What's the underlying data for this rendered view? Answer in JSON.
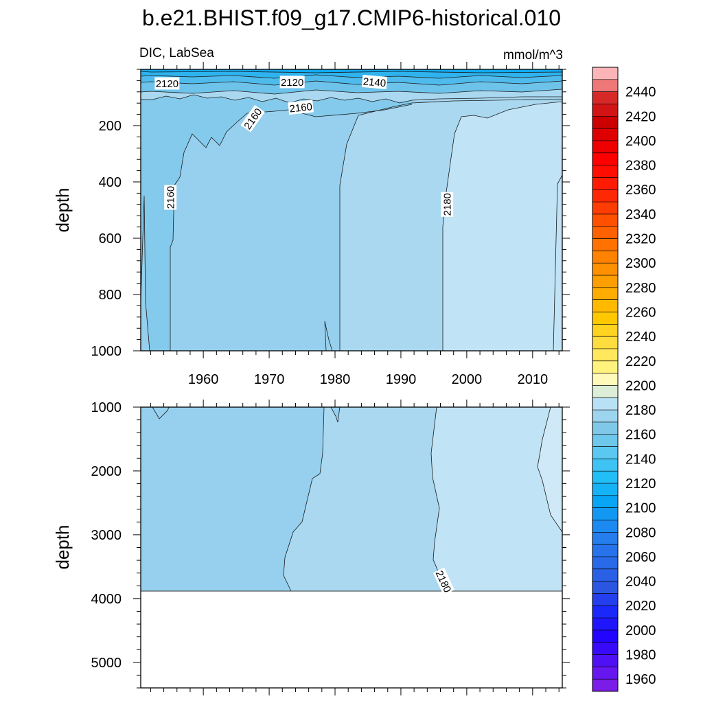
{
  "chart_data": {
    "type": "heatmap",
    "title": "b.e21.BHIST.f09_g17.CMIP6-historical.010",
    "left_subtitle": "DIC, LabSea",
    "right_subtitle": "mmol/m^3",
    "panels": [
      {
        "name": "upper",
        "ylabel": "depth",
        "ylim": [
          1000,
          0
        ],
        "y_ticks": [
          200,
          400,
          600,
          800,
          1000
        ],
        "xlim": [
          1950.5,
          2014.5
        ],
        "x_ticks": [
          1960,
          1970,
          1980,
          1990,
          2000,
          2010
        ],
        "x_tick_labels": [
          "1960",
          "1970",
          "1980",
          "1990",
          "2000",
          "2010"
        ],
        "contour_labels": [
          {
            "text": "2120",
            "year": 1954.5,
            "depth": 50,
            "angle": 0
          },
          {
            "text": "2120",
            "year": 1973.5,
            "depth": 45,
            "angle": 0
          },
          {
            "text": "2140",
            "year": 1986,
            "depth": 45,
            "angle": 5
          },
          {
            "text": "2160",
            "year": 1967.5,
            "depth": 175,
            "angle": -55
          },
          {
            "text": "2160",
            "year": 1974.8,
            "depth": 135,
            "angle": -6
          },
          {
            "text": "2160",
            "year": 1955,
            "depth": 455,
            "angle": -90
          },
          {
            "text": "2180",
            "year": 1997,
            "depth": 480,
            "angle": -90
          }
        ]
      },
      {
        "name": "lower",
        "ylabel": "depth",
        "ylim": [
          5400,
          1000
        ],
        "y_ticks": [
          1000,
          2000,
          3000,
          4000,
          5000
        ],
        "xlim": [
          1950.5,
          2014.5
        ],
        "data_bottom_depth": 3860,
        "contour_labels": [
          {
            "text": "2180",
            "year": 1996.5,
            "depth": 3730,
            "angle": 65
          }
        ]
      }
    ],
    "colorbar": {
      "min": 1950,
      "max": 2460,
      "step": 10,
      "tick_labels": [
        "1960",
        "1980",
        "2000",
        "2020",
        "2040",
        "2060",
        "2080",
        "2100",
        "2120",
        "2140",
        "2160",
        "2180",
        "2200",
        "2220",
        "2240",
        "2260",
        "2280",
        "2300",
        "2320",
        "2340",
        "2360",
        "2380",
        "2400",
        "2420",
        "2440"
      ]
    }
  }
}
